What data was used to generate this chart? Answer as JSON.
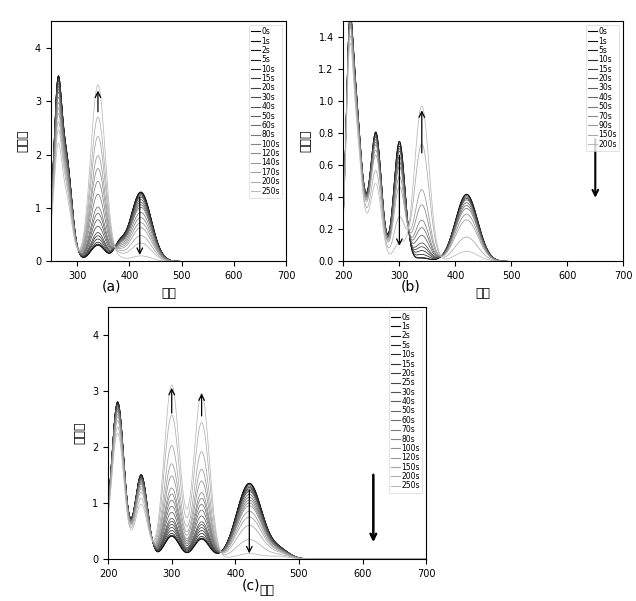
{
  "panel_a": {
    "title": "(a)",
    "xlabel": "波长",
    "ylabel": "吸光度",
    "xlim": [
      250,
      700
    ],
    "ylim": [
      0,
      4.5
    ],
    "yticks": [
      0,
      1,
      2,
      3,
      4
    ],
    "xticks": [
      300,
      400,
      500,
      600,
      700
    ],
    "legend_labels": [
      "0s",
      "1s",
      "2s",
      "5s",
      "10s",
      "15s",
      "20s",
      "30s",
      "40s",
      "50s",
      "60s",
      "80s",
      "100s",
      "120s",
      "140s",
      "170s",
      "200s",
      "250s"
    ],
    "times": [
      0,
      1,
      2,
      5,
      10,
      15,
      20,
      30,
      40,
      50,
      60,
      80,
      100,
      120,
      140,
      170,
      200,
      250
    ],
    "t_max": 250
  },
  "panel_b": {
    "title": "(b)",
    "xlabel": "波长",
    "ylabel": "吸光度",
    "xlim": [
      200,
      700
    ],
    "ylim": [
      0,
      1.5
    ],
    "yticks": [
      0.0,
      0.2,
      0.4,
      0.6,
      0.8,
      1.0,
      1.2,
      1.4
    ],
    "xticks": [
      200,
      300,
      400,
      500,
      600,
      700
    ],
    "legend_labels": [
      "0s",
      "1s",
      "5s",
      "10s",
      "15s",
      "20s",
      "30s",
      "40s",
      "50s",
      "70s",
      "90s",
      "150s",
      "200s"
    ],
    "times": [
      0,
      1,
      5,
      10,
      15,
      20,
      30,
      40,
      50,
      70,
      90,
      150,
      200
    ],
    "t_max": 200
  },
  "panel_c": {
    "title": "(c)",
    "xlabel": "波长",
    "ylabel": "吸光度",
    "xlim": [
      200,
      700
    ],
    "ylim": [
      0,
      4.5
    ],
    "yticks": [
      0,
      1,
      2,
      3,
      4
    ],
    "xticks": [
      200,
      300,
      400,
      500,
      600,
      700
    ],
    "legend_labels": [
      "0s",
      "1s",
      "2s",
      "5s",
      "10s",
      "15s",
      "20s",
      "25s",
      "30s",
      "40s",
      "50s",
      "60s",
      "70s",
      "80s",
      "100s",
      "120s",
      "150s",
      "200s",
      "250s"
    ],
    "times": [
      0,
      1,
      2,
      5,
      10,
      15,
      20,
      25,
      30,
      40,
      50,
      60,
      70,
      80,
      100,
      120,
      150,
      200,
      250
    ],
    "t_max": 250
  },
  "font_size_label": 9,
  "font_size_tick": 7,
  "font_size_legend": 5.5,
  "font_size_title": 10
}
